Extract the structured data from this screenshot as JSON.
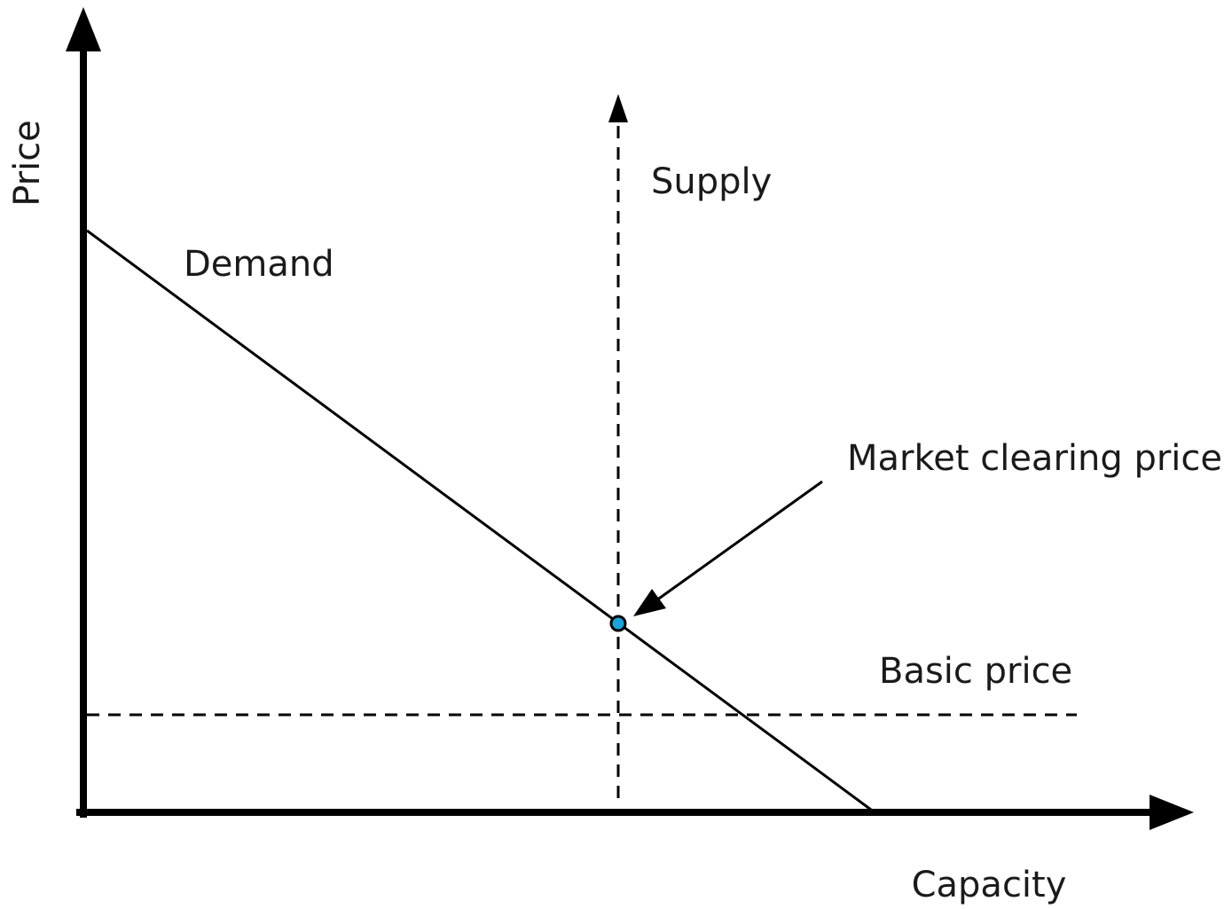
{
  "axes": {
    "y_label": "Price",
    "x_label": "Capacity"
  },
  "curves": {
    "demand_label": "Demand",
    "supply_label": "Supply",
    "basic_price_label": "Basic price"
  },
  "annotations": {
    "equilibrium_label": "Market clearing price"
  },
  "colors": {
    "ink": "#000000",
    "equilibrium_point": "#1aa3d9"
  }
}
